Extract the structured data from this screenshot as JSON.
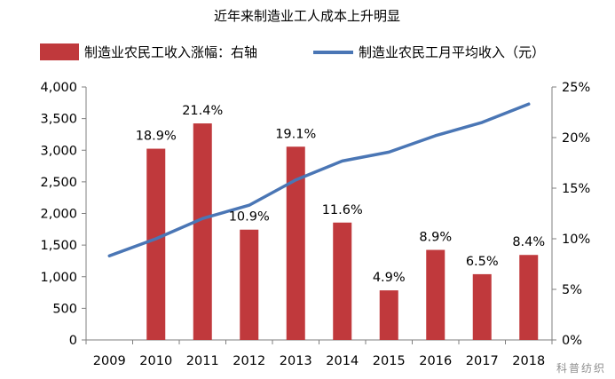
{
  "chart_data": {
    "type": "bar",
    "title": "近年来制造业工人成本上升明显",
    "categories": [
      "2009",
      "2010",
      "2011",
      "2012",
      "2013",
      "2014",
      "2015",
      "2016",
      "2017",
      "2018"
    ],
    "series": [
      {
        "name": "制造业农民工收入涨幅：右轴",
        "type": "bar",
        "axis": "right",
        "color": "#c0393c",
        "values": [
          null,
          18.9,
          21.4,
          10.9,
          19.1,
          11.6,
          4.9,
          8.9,
          6.5,
          8.4
        ],
        "labels": [
          "",
          "18.9%",
          "21.4%",
          "10.9%",
          "19.1%",
          "11.6%",
          "4.9%",
          "8.9%",
          "6.5%",
          "8.4%"
        ]
      },
      {
        "name": "制造业农民工月平均收入（元）",
        "type": "line",
        "axis": "left",
        "color": "#4a76b5",
        "values": [
          1330,
          1600,
          1920,
          2130,
          2530,
          2830,
          2970,
          3230,
          3440,
          3730
        ]
      }
    ],
    "y_left": {
      "ylim": [
        0,
        4000
      ],
      "ticks": [
        "0",
        "500",
        "1,000",
        "1,500",
        "2,000",
        "2,500",
        "3,000",
        "3,500",
        "4,000"
      ]
    },
    "y_right": {
      "ylim": [
        0,
        25
      ],
      "ticks": [
        "0%",
        "5%",
        "10%",
        "15%",
        "20%",
        "25%"
      ]
    },
    "grid": false,
    "legend_position": "top"
  },
  "watermark": "科普纺织"
}
